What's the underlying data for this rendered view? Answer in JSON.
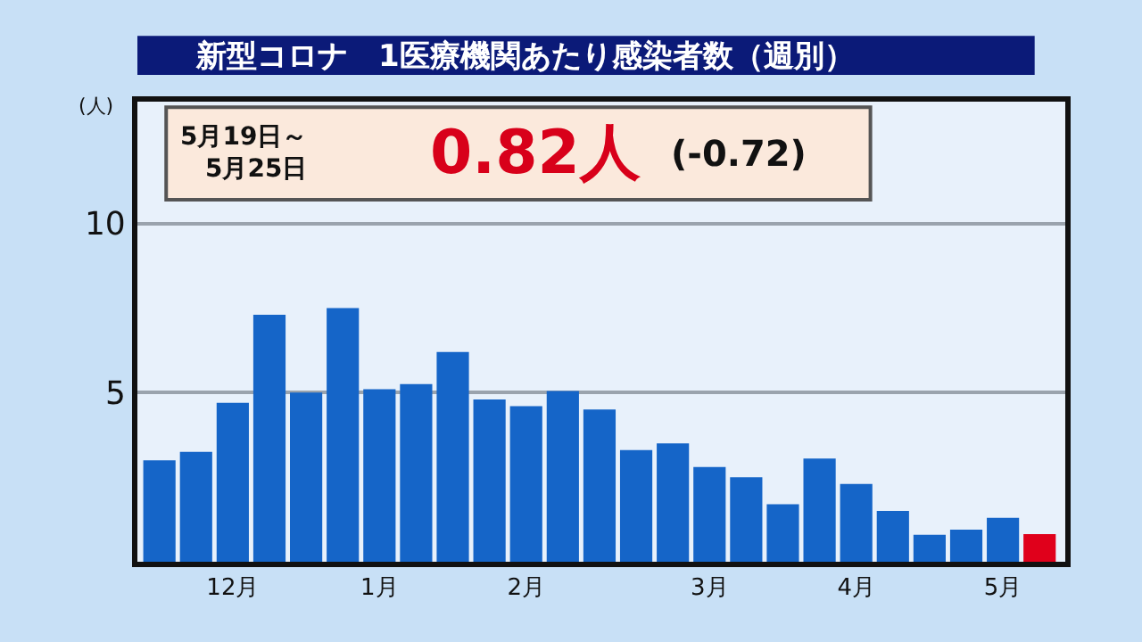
{
  "chart_data": {
    "type": "bar",
    "title": "新型コロナ　1医療機関あたり感染者数（週別）",
    "ylabel": "(人)",
    "categories": [
      null,
      null,
      "12月",
      null,
      null,
      null,
      "1月",
      null,
      null,
      null,
      "2月",
      null,
      null,
      null,
      null,
      "3月",
      null,
      null,
      null,
      "4月",
      null,
      null,
      null,
      "5月",
      null
    ],
    "values": [
      3.0,
      3.25,
      4.7,
      7.3,
      5.0,
      7.5,
      5.1,
      5.25,
      6.2,
      4.8,
      4.6,
      5.05,
      4.5,
      3.3,
      3.5,
      2.8,
      2.5,
      1.7,
      3.05,
      2.3,
      1.5,
      0.8,
      0.95,
      1.3,
      0.82
    ],
    "colors": [
      "#1565c8",
      "#1565c8",
      "#1565c8",
      "#1565c8",
      "#1565c8",
      "#1565c8",
      "#1565c8",
      "#1565c8",
      "#1565c8",
      "#1565c8",
      "#1565c8",
      "#1565c8",
      "#1565c8",
      "#1565c8",
      "#1565c8",
      "#1565c8",
      "#1565c8",
      "#1565c8",
      "#1565c8",
      "#1565c8",
      "#1565c8",
      "#1565c8",
      "#1565c8",
      "#1565c8",
      "#e0001b"
    ],
    "ylim": [
      0,
      13.6
    ],
    "yticks": [
      5,
      10
    ],
    "grid": "y",
    "annotations": [
      "5月19日～\n5月25日",
      "0.82人",
      "(-0.72)"
    ]
  }
}
